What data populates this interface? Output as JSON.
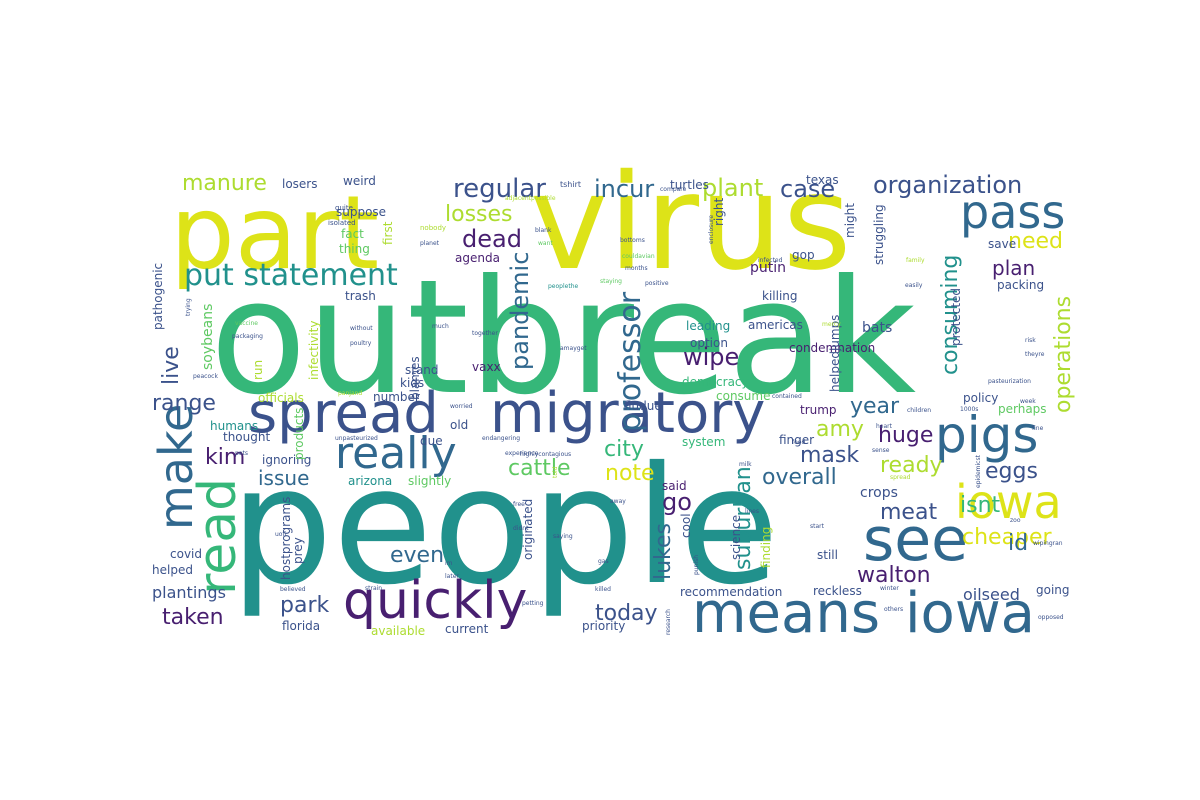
{
  "wordcloud": {
    "palette": {
      "dark_purple": "#481f70",
      "blue_purple": "#3b528b",
      "slate_blue": "#31688e",
      "teal": "#21918c",
      "green": "#35b779",
      "lime": "#5ec962",
      "yellow_green": "#addc30",
      "yellow": "#dde318"
    },
    "words": [
      {
        "text": "outbreak",
        "color": "#35b779"
      },
      {
        "text": "people",
        "color": "#21918c"
      },
      {
        "text": "virus",
        "color": "#dde318"
      },
      {
        "text": "part",
        "color": "#dde318"
      },
      {
        "text": "migratory",
        "color": "#3b528b"
      },
      {
        "text": "spread",
        "color": "#3b528b"
      },
      {
        "text": "means",
        "color": "#31688e"
      },
      {
        "text": "iowa",
        "color": "#31688e"
      },
      {
        "text": "iowa",
        "color": "#dde318"
      },
      {
        "text": "quickly",
        "color": "#481f70"
      },
      {
        "text": "pigs",
        "color": "#31688e"
      },
      {
        "text": "pass",
        "color": "#31688e"
      },
      {
        "text": "see",
        "color": "#31688e"
      },
      {
        "text": "really",
        "color": "#31688e"
      },
      {
        "text": "read",
        "color": "#35b779"
      },
      {
        "text": "make",
        "color": "#31688e"
      },
      {
        "text": "put statement",
        "color": "#21918c"
      },
      {
        "text": "regular",
        "color": "#3b528b"
      },
      {
        "text": "organization",
        "color": "#3b528b"
      },
      {
        "text": "incur",
        "color": "#31688e"
      },
      {
        "text": "losses",
        "color": "#addc30"
      },
      {
        "text": "dead",
        "color": "#481f70"
      },
      {
        "text": "plant",
        "color": "#addc30"
      },
      {
        "text": "case",
        "color": "#3b528b"
      },
      {
        "text": "need",
        "color": "#dde318"
      },
      {
        "text": "manure",
        "color": "#addc30"
      },
      {
        "text": "plan",
        "color": "#481f70"
      },
      {
        "text": "operations",
        "color": "#addc30"
      },
      {
        "text": "consuming",
        "color": "#21918c"
      },
      {
        "text": "professor",
        "color": "#31688e"
      },
      {
        "text": "pandemic",
        "color": "#31688e"
      },
      {
        "text": "wipe",
        "color": "#481f70"
      },
      {
        "text": "year",
        "color": "#31688e"
      },
      {
        "text": "amy",
        "color": "#addc30"
      },
      {
        "text": "mask",
        "color": "#3b528b"
      },
      {
        "text": "huge",
        "color": "#481f70"
      },
      {
        "text": "ready",
        "color": "#addc30"
      },
      {
        "text": "eggs",
        "color": "#3b528b"
      },
      {
        "text": "cheaper",
        "color": "#dde318"
      },
      {
        "text": "isnt",
        "color": "#35b779"
      },
      {
        "text": "id",
        "color": "#31688e"
      },
      {
        "text": "walton",
        "color": "#481f70"
      },
      {
        "text": "meat",
        "color": "#3b528b"
      },
      {
        "text": "overall",
        "color": "#31688e"
      },
      {
        "text": "note",
        "color": "#dde318"
      },
      {
        "text": "city",
        "color": "#35b779"
      },
      {
        "text": "cattle",
        "color": "#5ec962"
      },
      {
        "text": "go",
        "color": "#481f70"
      },
      {
        "text": "suburban",
        "color": "#21918c"
      },
      {
        "text": "lukes",
        "color": "#31688e"
      },
      {
        "text": "today",
        "color": "#3b528b"
      },
      {
        "text": "even",
        "color": "#31688e"
      },
      {
        "text": "park",
        "color": "#3b528b"
      },
      {
        "text": "kim",
        "color": "#481f70"
      },
      {
        "text": "issue",
        "color": "#31688e"
      },
      {
        "text": "range",
        "color": "#3b528b"
      },
      {
        "text": "live",
        "color": "#3b528b"
      },
      {
        "text": "taken",
        "color": "#481f70"
      },
      {
        "text": "plantings",
        "color": "#3b528b"
      },
      {
        "text": "oilseed",
        "color": "#3b528b"
      },
      {
        "text": "crops",
        "color": "#3b528b"
      },
      {
        "text": "soybeans",
        "color": "#5ec962"
      },
      {
        "text": "losers",
        "color": "#3b528b"
      },
      {
        "text": "weird",
        "color": "#3b528b"
      },
      {
        "text": "suppose",
        "color": "#3b528b"
      },
      {
        "text": "fact",
        "color": "#5ec962"
      },
      {
        "text": "thing",
        "color": "#5ec962"
      },
      {
        "text": "agenda",
        "color": "#481f70"
      },
      {
        "text": "trash",
        "color": "#3b528b"
      },
      {
        "text": "turtles",
        "color": "#3b528b"
      },
      {
        "text": "texas",
        "color": "#3b528b"
      },
      {
        "text": "right",
        "color": "#3b528b"
      },
      {
        "text": "gop",
        "color": "#3b528b"
      },
      {
        "text": "putin",
        "color": "#481f70"
      },
      {
        "text": "killing",
        "color": "#3b528b"
      },
      {
        "text": "americas",
        "color": "#3b528b"
      },
      {
        "text": "condemnation",
        "color": "#481f70"
      },
      {
        "text": "leading",
        "color": "#21918c"
      },
      {
        "text": "option",
        "color": "#3b528b"
      },
      {
        "text": "democracy",
        "color": "#35b779"
      },
      {
        "text": "consume",
        "color": "#5ec962"
      },
      {
        "text": "trump",
        "color": "#481f70"
      },
      {
        "text": "bats",
        "color": "#3b528b"
      },
      {
        "text": "finger",
        "color": "#3b528b"
      },
      {
        "text": "policy",
        "color": "#3b528b"
      },
      {
        "text": "perhaps",
        "color": "#5ec962"
      },
      {
        "text": "save",
        "color": "#3b528b"
      },
      {
        "text": "packing",
        "color": "#3b528b"
      },
      {
        "text": "vaxx",
        "color": "#481f70"
      },
      {
        "text": "kids",
        "color": "#3b528b"
      },
      {
        "text": "stand",
        "color": "#3b528b"
      },
      {
        "text": "number",
        "color": "#3b528b"
      },
      {
        "text": "fludue",
        "color": "#3b528b"
      },
      {
        "text": "old",
        "color": "#3b528b"
      },
      {
        "text": "due",
        "color": "#3b528b"
      },
      {
        "text": "ignoring",
        "color": "#3b528b"
      },
      {
        "text": "arizona",
        "color": "#21918c"
      },
      {
        "text": "slightly",
        "color": "#5ec962"
      },
      {
        "text": "humans",
        "color": "#21918c"
      },
      {
        "text": "thought",
        "color": "#3b528b"
      },
      {
        "text": "officials",
        "color": "#addc30"
      },
      {
        "text": "covid",
        "color": "#3b528b"
      },
      {
        "text": "helped",
        "color": "#3b528b"
      },
      {
        "text": "florida",
        "color": "#3b528b"
      },
      {
        "text": "available",
        "color": "#addc30"
      },
      {
        "text": "current",
        "color": "#3b528b"
      },
      {
        "text": "priority",
        "color": "#3b528b"
      },
      {
        "text": "recommendation",
        "color": "#3b528b"
      },
      {
        "text": "reckless",
        "color": "#3b528b"
      },
      {
        "text": "going",
        "color": "#3b528b"
      },
      {
        "text": "said",
        "color": "#481f70"
      },
      {
        "text": "system",
        "color": "#35b779"
      },
      {
        "text": "science",
        "color": "#3b528b"
      },
      {
        "text": "finding",
        "color": "#addc30"
      },
      {
        "text": "still",
        "color": "#3b528b"
      },
      {
        "text": "cool",
        "color": "#3b528b"
      },
      {
        "text": "pathogenic",
        "color": "#3b528b"
      },
      {
        "text": "infectivity",
        "color": "#addc30"
      },
      {
        "text": "run",
        "color": "#addc30"
      },
      {
        "text": "products",
        "color": "#5ec962"
      },
      {
        "text": "first",
        "color": "#addc30"
      },
      {
        "text": "blames",
        "color": "#3b528b"
      },
      {
        "text": "originated",
        "color": "#3b528b"
      },
      {
        "text": "hostprograms",
        "color": "#3b528b"
      },
      {
        "text": "prey",
        "color": "#3b528b"
      },
      {
        "text": "struggling",
        "color": "#3b528b"
      },
      {
        "text": "might",
        "color": "#3b528b"
      },
      {
        "text": "protected",
        "color": "#3b528b"
      },
      {
        "text": "helpedjumps",
        "color": "#3b528b"
      },
      {
        "text": "tshirt",
        "color": "#3b528b"
      },
      {
        "text": "compare",
        "color": "#3b528b"
      },
      {
        "text": "quite",
        "color": "#3b528b"
      },
      {
        "text": "isolated",
        "color": "#3b528b"
      },
      {
        "text": "nobody",
        "color": "#addc30"
      },
      {
        "text": "blank",
        "color": "#3b528b"
      },
      {
        "text": "planet",
        "color": "#3b528b"
      },
      {
        "text": "bottoms",
        "color": "#3b528b"
      },
      {
        "text": "want",
        "color": "#5ec962"
      },
      {
        "text": "enclosure",
        "color": "#3b528b"
      },
      {
        "text": "infected",
        "color": "#3b528b"
      },
      {
        "text": "family",
        "color": "#addc30"
      },
      {
        "text": "couldavian",
        "color": "#5ec962"
      },
      {
        "text": "months",
        "color": "#3b528b"
      },
      {
        "text": "positive",
        "color": "#3b528b"
      },
      {
        "text": "easily",
        "color": "#3b528b"
      },
      {
        "text": "adjacentpossible",
        "color": "#addc30"
      },
      {
        "text": "staying",
        "color": "#5ec962"
      },
      {
        "text": "peoplethe",
        "color": "#21918c"
      },
      {
        "text": "vaccine",
        "color": "#5ec962"
      },
      {
        "text": "without",
        "color": "#3b528b"
      },
      {
        "text": "packaging",
        "color": "#3b528b"
      },
      {
        "text": "poultry",
        "color": "#3b528b"
      },
      {
        "text": "much",
        "color": "#3b528b"
      },
      {
        "text": "together",
        "color": "#3b528b"
      },
      {
        "text": "amayget",
        "color": "#3b528b"
      },
      {
        "text": "mercy",
        "color": "#addc30"
      },
      {
        "text": "risk",
        "color": "#3b528b"
      },
      {
        "text": "theyre",
        "color": "#3b528b"
      },
      {
        "text": "pasteurization",
        "color": "#3b528b"
      },
      {
        "text": "peacock",
        "color": "#3b528b"
      },
      {
        "text": "trying",
        "color": "#3b528b"
      },
      {
        "text": "panjand",
        "color": "#addc30"
      },
      {
        "text": "worried",
        "color": "#3b528b"
      },
      {
        "text": "unpasteurized",
        "color": "#3b528b"
      },
      {
        "text": "endangering",
        "color": "#3b528b"
      },
      {
        "text": "contained",
        "color": "#3b528b"
      },
      {
        "text": "children",
        "color": "#3b528b"
      },
      {
        "text": "week",
        "color": "#3b528b"
      },
      {
        "text": "fine",
        "color": "#3b528b"
      },
      {
        "text": "heart",
        "color": "#3b528b"
      },
      {
        "text": "food",
        "color": "#3b528b"
      },
      {
        "text": "sense",
        "color": "#3b528b"
      },
      {
        "text": "spread",
        "color": "#addc30"
      },
      {
        "text": "epidemicst",
        "color": "#3b528b"
      },
      {
        "text": "milk",
        "color": "#3b528b"
      },
      {
        "text": "pets",
        "color": "#3b528b"
      },
      {
        "text": "uofi",
        "color": "#3b528b"
      },
      {
        "text": "believed",
        "color": "#3b528b"
      },
      {
        "text": "strain",
        "color": "#3b528b"
      },
      {
        "text": "killed",
        "color": "#3b528b"
      },
      {
        "text": "experience",
        "color": "#3b528b"
      },
      {
        "text": "away",
        "color": "#3b528b"
      },
      {
        "text": "lines",
        "color": "#3b528b"
      },
      {
        "text": "saying",
        "color": "#3b528b"
      },
      {
        "text": "didnt",
        "color": "#3b528b"
      },
      {
        "text": "free",
        "color": "#3b528b"
      },
      {
        "text": "im",
        "color": "#3b528b"
      },
      {
        "text": "later",
        "color": "#3b528b"
      },
      {
        "text": "gas",
        "color": "#3b528b"
      },
      {
        "text": "petting",
        "color": "#3b528b"
      },
      {
        "text": "research",
        "color": "#3b528b"
      },
      {
        "text": "punish",
        "color": "#3b528b"
      },
      {
        "text": "start",
        "color": "#3b528b"
      },
      {
        "text": "winter",
        "color": "#3b528b"
      },
      {
        "text": "others",
        "color": "#3b528b"
      },
      {
        "text": "zoo",
        "color": "#3b528b"
      },
      {
        "text": "wipingran",
        "color": "#3b528b"
      },
      {
        "text": "opposed",
        "color": "#3b528b"
      },
      {
        "text": "highlycontagious",
        "color": "#3b528b"
      },
      {
        "text": "told",
        "color": "#addc30"
      },
      {
        "text": "1000s",
        "color": "#3b528b"
      }
    ]
  }
}
